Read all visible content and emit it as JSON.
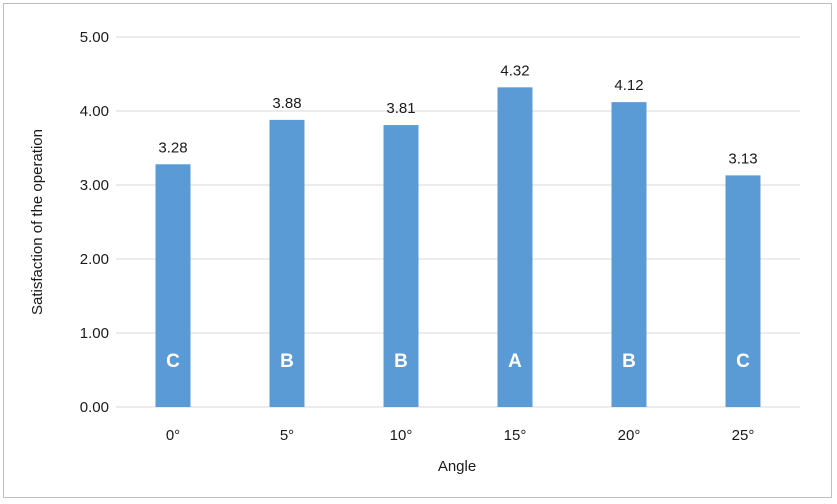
{
  "chart_data": {
    "type": "bar",
    "title": "",
    "xlabel": "Angle",
    "ylabel": "Satisfaction of the operation",
    "categories": [
      "0°",
      "5°",
      "10°",
      "15°",
      "20°",
      "25°"
    ],
    "values": [
      3.28,
      3.88,
      3.81,
      4.32,
      4.12,
      3.13
    ],
    "value_labels": [
      "3.28",
      "3.88",
      "3.81",
      "4.32",
      "4.12",
      "3.13"
    ],
    "group_labels": [
      "C",
      "B",
      "B",
      "A",
      "B",
      "C"
    ],
    "ylim": [
      0,
      5
    ],
    "yticks": [
      "0.00",
      "1.00",
      "2.00",
      "3.00",
      "4.00",
      "5.00"
    ],
    "grid": true,
    "legend": "none",
    "bar_color": "#5b9bd5",
    "grid_color": "#d9d9d9"
  }
}
